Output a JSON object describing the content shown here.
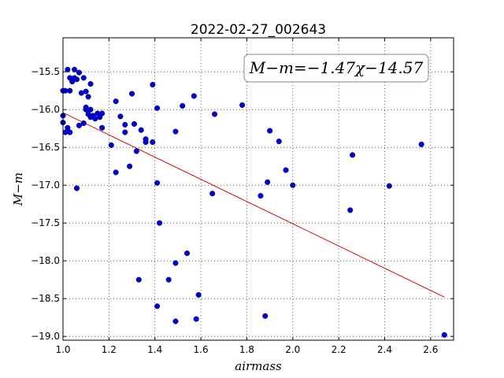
{
  "chart_data": {
    "type": "scatter",
    "title": "2022-02-27_002643",
    "xlabel": "airmass",
    "ylabel": "M−m",
    "xlim": [
      1.0,
      2.7
    ],
    "ylim": [
      -19.05,
      -15.05
    ],
    "y_inverted": true,
    "grid": true,
    "x_ticks": [
      1.0,
      1.2,
      1.4,
      1.6,
      1.8,
      2.0,
      2.2,
      2.4,
      2.6
    ],
    "x_tick_labels": [
      "1.0",
      "1.2",
      "1.4",
      "1.6",
      "1.8",
      "2.0",
      "2.2",
      "2.4",
      "2.6"
    ],
    "y_ticks": [
      -15.5,
      -16.0,
      -16.5,
      -17.0,
      -17.5,
      -18.0,
      -18.5,
      -19.0
    ],
    "y_tick_labels": [
      "−15.5",
      "−16.0",
      "−16.5",
      "−17.0",
      "−17.5",
      "−18.0",
      "−18.5",
      "−19.0"
    ],
    "annotation": "M−m=−1.47χ−14.57",
    "point_color": "#0000cc",
    "fit_color": "#dd0000",
    "fit_line": {
      "slope": -1.47,
      "intercept": -14.57,
      "x_range": [
        1.0,
        2.66
      ]
    },
    "points": [
      [
        1.0,
        -15.75
      ],
      [
        1.01,
        -15.75
      ],
      [
        1.02,
        -15.47
      ],
      [
        1.03,
        -15.75
      ],
      [
        1.03,
        -15.58
      ],
      [
        1.04,
        -15.63
      ],
      [
        1.05,
        -15.58
      ],
      [
        1.05,
        -15.47
      ],
      [
        1.06,
        -15.6
      ],
      [
        1.07,
        -15.51
      ],
      [
        1.08,
        -15.78
      ],
      [
        1.09,
        -15.58
      ],
      [
        1.1,
        -15.76
      ],
      [
        1.11,
        -15.83
      ],
      [
        1.12,
        -15.66
      ],
      [
        1.1,
        -15.97
      ],
      [
        1.1,
        -16.0
      ],
      [
        1.11,
        -16.06
      ],
      [
        1.12,
        -16.0
      ],
      [
        1.12,
        -16.1
      ],
      [
        1.13,
        -16.08
      ],
      [
        1.14,
        -16.12
      ],
      [
        1.15,
        -16.05
      ],
      [
        1.16,
        -16.1
      ],
      [
        1.17,
        -16.05
      ],
      [
        1.17,
        -16.24
      ],
      [
        1.09,
        -16.18
      ],
      [
        1.07,
        -16.21
      ],
      [
        1.0,
        -16.08
      ],
      [
        1.0,
        -16.17
      ],
      [
        1.01,
        -16.3
      ],
      [
        1.02,
        -16.24
      ],
      [
        1.03,
        -16.3
      ],
      [
        1.06,
        -17.04
      ],
      [
        1.21,
        -16.47
      ],
      [
        1.23,
        -15.89
      ],
      [
        1.23,
        -16.83
      ],
      [
        1.25,
        -16.09
      ],
      [
        1.27,
        -16.2
      ],
      [
        1.27,
        -16.3
      ],
      [
        1.29,
        -16.75
      ],
      [
        1.3,
        -15.79
      ],
      [
        1.31,
        -16.19
      ],
      [
        1.32,
        -16.55
      ],
      [
        1.33,
        -18.25
      ],
      [
        1.34,
        -16.27
      ],
      [
        1.36,
        -16.39
      ],
      [
        1.36,
        -16.43
      ],
      [
        1.39,
        -16.43
      ],
      [
        1.39,
        -15.67
      ],
      [
        1.41,
        -15.98
      ],
      [
        1.41,
        -16.97
      ],
      [
        1.41,
        -18.6
      ],
      [
        1.42,
        -17.5
      ],
      [
        1.46,
        -18.25
      ],
      [
        1.49,
        -16.29
      ],
      [
        1.49,
        -18.03
      ],
      [
        1.49,
        -18.8
      ],
      [
        1.52,
        -15.95
      ],
      [
        1.54,
        -17.9
      ],
      [
        1.57,
        -15.82
      ],
      [
        1.58,
        -18.77
      ],
      [
        1.59,
        -18.45
      ],
      [
        1.65,
        -17.11
      ],
      [
        1.66,
        -16.06
      ],
      [
        1.78,
        -15.94
      ],
      [
        1.86,
        -17.14
      ],
      [
        1.88,
        -18.73
      ],
      [
        1.89,
        -16.96
      ],
      [
        1.9,
        -16.28
      ],
      [
        1.94,
        -16.42
      ],
      [
        1.97,
        -16.8
      ],
      [
        2.0,
        -17.0
      ],
      [
        2.25,
        -17.33
      ],
      [
        2.26,
        -16.6
      ],
      [
        2.42,
        -17.01
      ],
      [
        2.56,
        -16.46
      ],
      [
        2.66,
        -18.98
      ]
    ]
  }
}
